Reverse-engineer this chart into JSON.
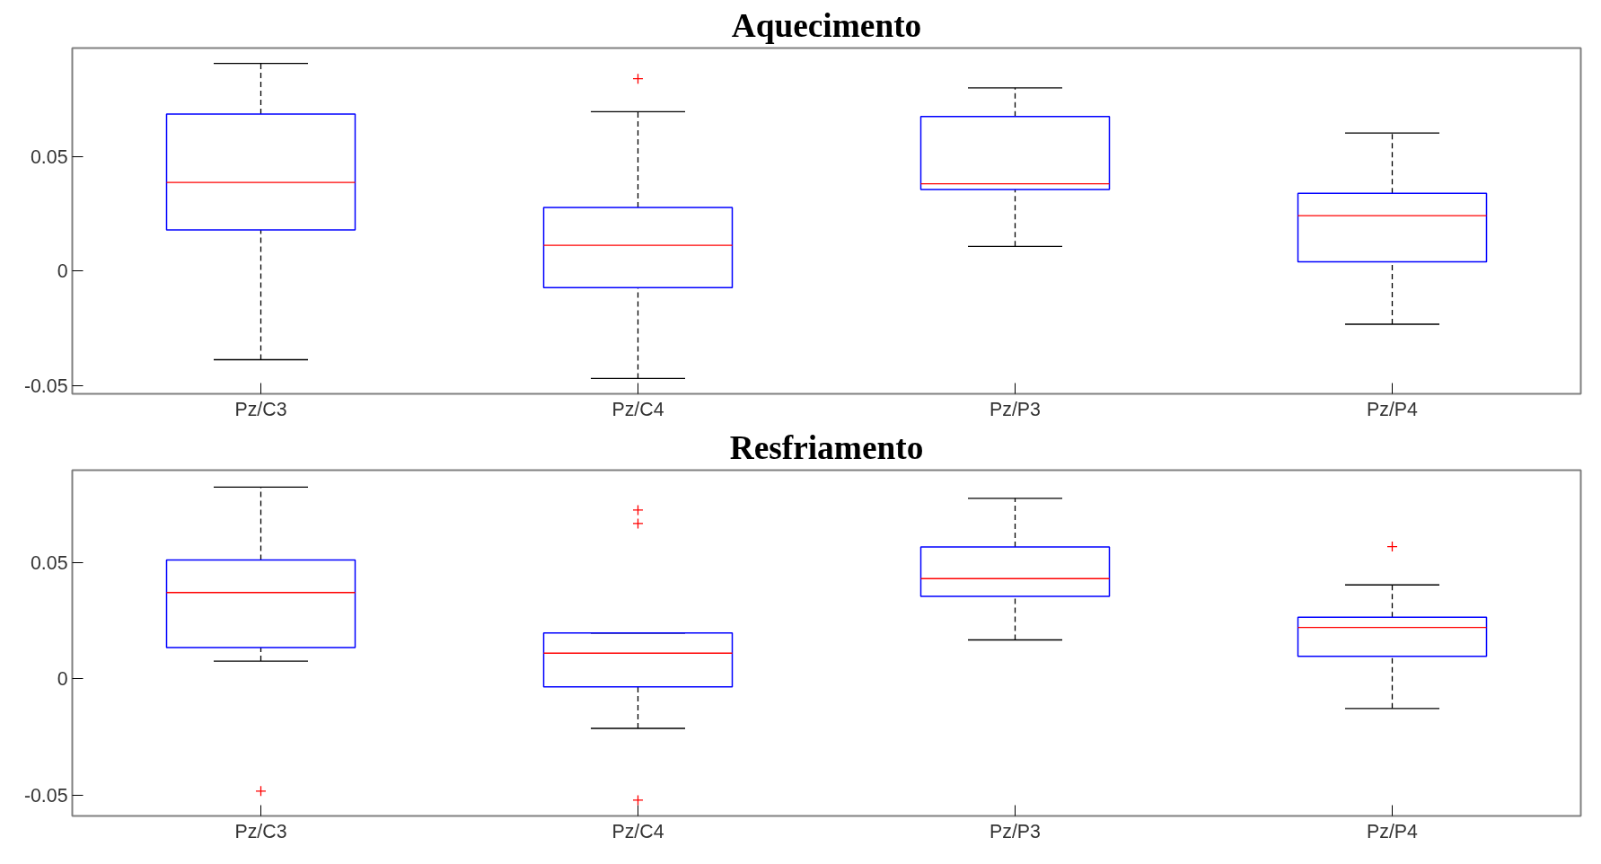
{
  "chart_data": [
    {
      "type": "box",
      "title": "Aquecimento",
      "categories": [
        "Pz/C3",
        "Pz/C4",
        "Pz/P3",
        "Pz/P4"
      ],
      "ylim": [
        -0.0536,
        0.0974
      ],
      "yticks": [
        -0.05,
        0,
        0.05
      ],
      "grid": false,
      "series": [
        {
          "color": "#0000ff",
          "boxes": [
            {
              "low": -0.0387,
              "q1": 0.018,
              "median": 0.0387,
              "q3": 0.0686,
              "high": 0.0907
            },
            {
              "low": -0.0469,
              "q1": -0.0072,
              "median": 0.0113,
              "q3": 0.0278,
              "high": 0.0696,
              "outliers": [
                0.084
              ]
            },
            {
              "low": 0.0108,
              "q1": 0.0356,
              "median": 0.0381,
              "q3": 0.0675,
              "high": 0.08
            },
            {
              "low": -0.0232,
              "q1": 0.0041,
              "median": 0.0242,
              "q3": 0.034,
              "high": 0.0603
            }
          ]
        }
      ]
    },
    {
      "type": "box",
      "title": "Resfriamento",
      "categories": [
        "Pz/C3",
        "Pz/C4",
        "Pz/P3",
        "Pz/P4"
      ],
      "ylim": [
        -0.059,
        0.0899
      ],
      "yticks": [
        -0.05,
        0,
        0.05
      ],
      "grid": false,
      "series": [
        {
          "color": "#0000ff",
          "boxes": [
            {
              "low": 0.0077,
              "q1": 0.0135,
              "median": 0.0372,
              "q3": 0.0512,
              "high": 0.0826,
              "outliers": [
                -0.0483
              ]
            },
            {
              "low": -0.0213,
              "q1": -0.0034,
              "median": 0.0111,
              "q3": 0.0198,
              "high": 0.0198,
              "outliers": [
                0.0727,
                0.0669,
                -0.0522
              ]
            },
            {
              "low": 0.0168,
              "q1": 0.0356,
              "median": 0.0432,
              "q3": 0.0568,
              "high": 0.0778
            },
            {
              "low": -0.0127,
              "q1": 0.0097,
              "median": 0.0222,
              "q3": 0.0266,
              "high": 0.0405,
              "outliers": [
                0.057
              ]
            }
          ]
        }
      ]
    }
  ]
}
